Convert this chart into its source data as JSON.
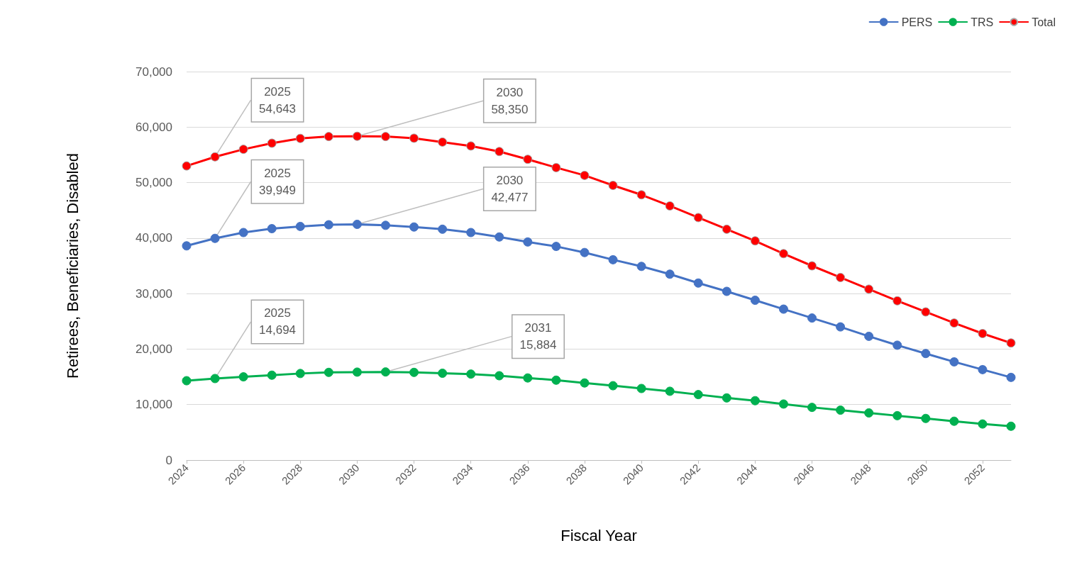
{
  "chart_data": {
    "type": "line",
    "xlabel": "Fiscal Year",
    "ylabel": "Retirees, Beneficiaries, Disabled",
    "x": [
      2024,
      2025,
      2026,
      2027,
      2028,
      2029,
      2030,
      2031,
      2032,
      2033,
      2034,
      2035,
      2036,
      2037,
      2038,
      2039,
      2040,
      2041,
      2042,
      2043,
      2044,
      2045,
      2046,
      2047,
      2048,
      2049,
      2050,
      2051,
      2052,
      2053
    ],
    "series": [
      {
        "name": "PERS",
        "color": "#4472c4",
        "values": [
          38600,
          39949,
          41000,
          41700,
          42100,
          42400,
          42477,
          42300,
          42000,
          41600,
          41000,
          40200,
          39300,
          38500,
          37400,
          36100,
          34900,
          33500,
          31900,
          30400,
          28800,
          27200,
          25600,
          24000,
          22300,
          20700,
          19200,
          17700,
          16300,
          14900
        ]
      },
      {
        "name": "TRS",
        "color": "#00b050",
        "values": [
          14300,
          14694,
          15000,
          15300,
          15600,
          15800,
          15850,
          15884,
          15800,
          15650,
          15500,
          15200,
          14800,
          14400,
          13900,
          13400,
          12900,
          12400,
          11800,
          11200,
          10700,
          10100,
          9500,
          9000,
          8500,
          8000,
          7500,
          7000,
          6500,
          6100
        ]
      },
      {
        "name": "Total",
        "color": "#ff0000",
        "values": [
          53000,
          54643,
          56000,
          57100,
          57960,
          58300,
          58350,
          58300,
          58000,
          57300,
          56600,
          55600,
          54200,
          52700,
          51300,
          49500,
          47800,
          45800,
          43700,
          41600,
          39500,
          37200,
          35000,
          32900,
          30800,
          28700,
          26700,
          24700,
          22800,
          21100
        ]
      }
    ],
    "annotations": [
      {
        "text": "2025\n54,643",
        "x": 2025,
        "y": 54643
      },
      {
        "text": "2030\n58,350",
        "x": 2030,
        "y": 58350
      },
      {
        "text": "2025\n39,949",
        "x": 2025,
        "y": 39949
      },
      {
        "text": "2030\n42,477",
        "x": 2030,
        "y": 42477
      },
      {
        "text": "2025\n14,694",
        "x": 2025,
        "y": 14694
      },
      {
        "text": "2031\n15,884",
        "x": 2031,
        "y": 15884
      }
    ],
    "xlim": [
      2024,
      2053
    ],
    "xticks": [
      2024,
      2026,
      2028,
      2030,
      2032,
      2034,
      2036,
      2038,
      2040,
      2042,
      2044,
      2046,
      2048,
      2050,
      2052
    ],
    "ylim": [
      0,
      70000
    ],
    "yticks": [
      0,
      {
        "value": 10000,
        "label": "10,000"
      },
      {
        "value": 20000,
        "label": "20,000"
      },
      {
        "value": 30000,
        "label": "30,000"
      },
      {
        "value": 40000,
        "label": "40,000"
      },
      {
        "value": 50000,
        "label": "50,000"
      },
      {
        "value": 60000,
        "label": "60,000"
      },
      {
        "value": 70000,
        "label": "70,000"
      }
    ],
    "grid": "y",
    "legend": "top right",
    "marker": "circle",
    "line_style": "solid"
  }
}
